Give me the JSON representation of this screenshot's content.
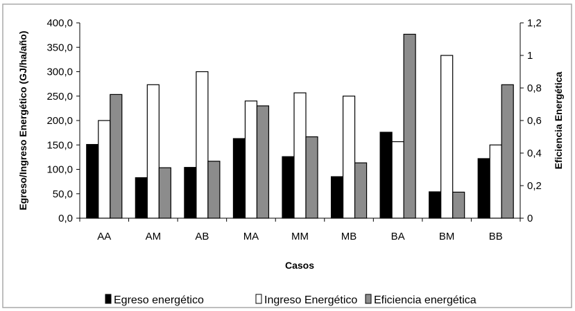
{
  "chart_data": {
    "type": "bar",
    "categories": [
      "AA",
      "AM",
      "AB",
      "MA",
      "MM",
      "MB",
      "BA",
      "BM",
      "BB"
    ],
    "series": [
      {
        "name": "Egreso energético",
        "axis": "left",
        "color": "#000000",
        "values": [
          151,
          83,
          104,
          163,
          126,
          85,
          176,
          54,
          122
        ]
      },
      {
        "name": "Ingreso Energético",
        "axis": "right",
        "color": "#ffffff",
        "values": [
          0.6,
          0.82,
          0.9,
          0.72,
          0.77,
          0.75,
          0.47,
          1.0,
          0.45
        ]
      },
      {
        "name": "Eficiencia energética",
        "axis": "right",
        "color": "#8c8c8c",
        "values": [
          0.76,
          0.31,
          0.35,
          0.69,
          0.5,
          0.34,
          1.13,
          0.16,
          0.82
        ]
      }
    ],
    "xlabel": "Casos",
    "ylabel_left": "Egreso/Ingreso Energético (GJ/ha/año)",
    "ylabel_right": "Eficiencia Energética",
    "ylim_left": [
      0,
      400
    ],
    "ylim_right": [
      0,
      1.2
    ],
    "yticks_left": [
      "0,0",
      "50,0",
      "100,0",
      "150,0",
      "200,0",
      "250,0",
      "300,0",
      "350,0",
      "400,0"
    ],
    "yticks_right": [
      "0",
      "0,2",
      "0,4",
      "0,6",
      "0,8",
      "1",
      "1,2"
    ],
    "grid": false,
    "legend_position": "bottom"
  }
}
